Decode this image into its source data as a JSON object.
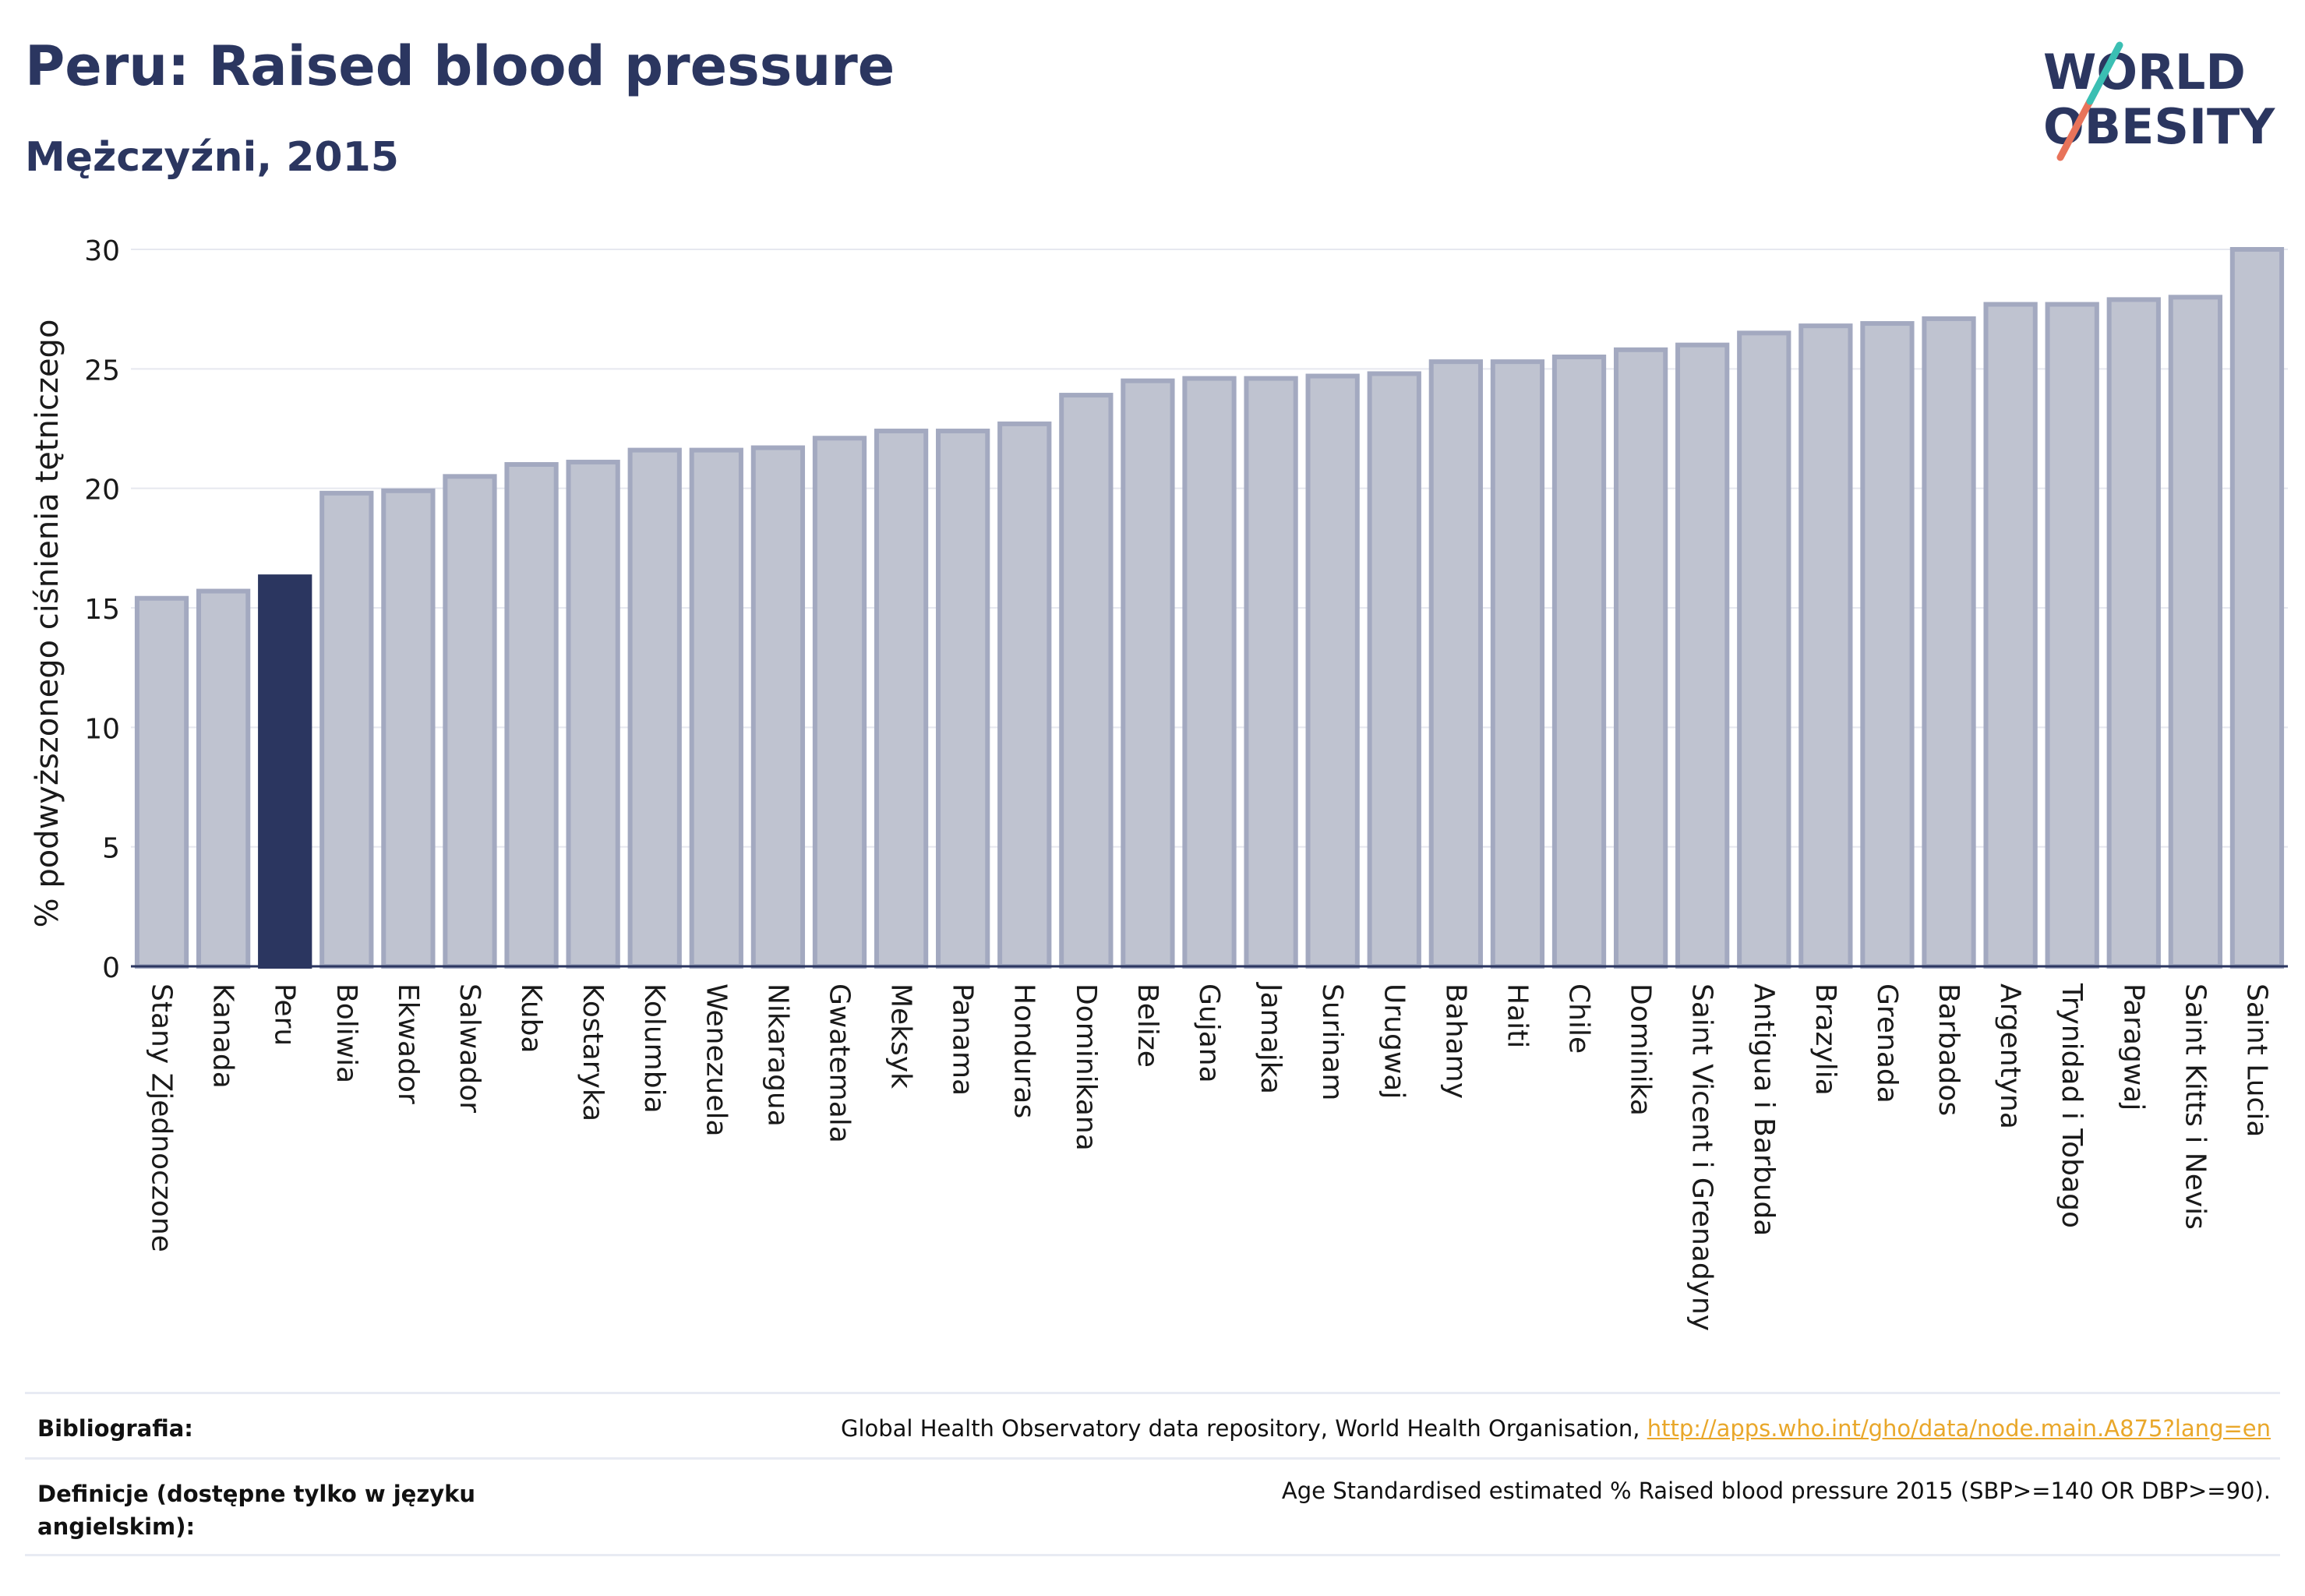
{
  "title": "Peru: Raised blood pressure",
  "subtitle": "Mężczyźni, 2015",
  "logo": {
    "line1": "WORLD",
    "line2": "OBESITY"
  },
  "chart_data": {
    "type": "bar",
    "ylabel": "% podwyższonego ciśnienia tętniczego",
    "xlabel": "",
    "ylim": [
      0,
      30
    ],
    "yticks": [
      0,
      5,
      10,
      15,
      20,
      25,
      30
    ],
    "grid": true,
    "highlight": "Peru",
    "colors": {
      "bar": "#bfc3d0",
      "bar_border": "#a3a9c0",
      "highlight": "#2b3660"
    },
    "categories": [
      "Stany Zjednoczone",
      "Kanada",
      "Peru",
      "Boliwia",
      "Ekwador",
      "Salwador",
      "Kuba",
      "Kostaryka",
      "Kolumbia",
      "Wenezuela",
      "Nikaragua",
      "Gwatemala",
      "Meksyk",
      "Panama",
      "Honduras",
      "Dominikana",
      "Belize",
      "Gujana",
      "Jamajka",
      "Surinam",
      "Urugwaj",
      "Bahamy",
      "Haiti",
      "Chile",
      "Dominika",
      "Saint Vicent i Grenadyny",
      "Antigua i Barbuda",
      "Brazylia",
      "Grenada",
      "Barbados",
      "Argentyna",
      "Trynidad i Tobago",
      "Paragwaj",
      "Saint Kitts i Nevis",
      "Saint Lucia"
    ],
    "values": [
      15.4,
      15.7,
      16.3,
      19.8,
      19.9,
      20.5,
      21.0,
      21.1,
      21.6,
      21.6,
      21.7,
      22.1,
      22.4,
      22.4,
      22.7,
      23.9,
      24.5,
      24.6,
      24.6,
      24.7,
      24.8,
      25.3,
      25.3,
      25.5,
      25.8,
      26.0,
      26.5,
      26.8,
      26.9,
      27.1,
      27.7,
      27.7,
      27.9,
      28.0,
      30.0
    ]
  },
  "footer": {
    "bibliography_label": "Bibliografia:",
    "bibliography_text": "Global Health Observatory data repository, World Health Organisation,",
    "bibliography_link": "http://apps.who.int/gho/data/node.main.A875?lang=en",
    "definitions_label": "Definicje (dostępne tylko w języku angielskim):",
    "definitions_text": "Age Standardised estimated % Raised blood pressure 2015 (SBP>=140 OR DBP>=90)."
  }
}
